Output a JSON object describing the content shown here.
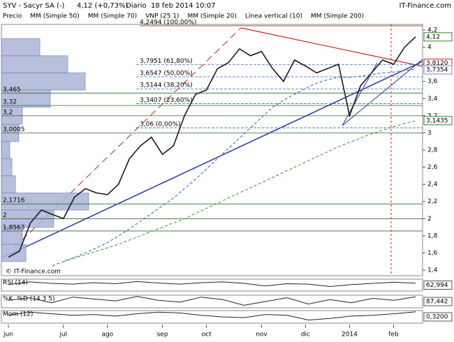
{
  "chart_data": {
    "type": "line",
    "title": "SYV - Sacyr SA (-)",
    "quote": "4,12 (+0,73%)",
    "period": "Diario",
    "timestamp": "18 feb 2014 10:07",
    "brand": "IT-Finance.com",
    "watermark": "© IT-Finance.com",
    "categories": [
      "jun",
      null,
      null,
      null,
      null,
      "jul",
      null,
      null,
      null,
      "ago",
      null,
      null,
      null,
      null,
      "sep",
      null,
      null,
      null,
      "oct",
      null,
      null,
      null,
      null,
      "nov",
      null,
      null,
      null,
      "dic",
      null,
      null,
      null,
      "2014",
      null,
      null,
      null,
      "feb",
      null,
      null
    ],
    "series": [
      {
        "name": "Precio",
        "color": "#1a1a1a",
        "values": [
          1.55,
          1.62,
          1.95,
          2.1,
          2.05,
          2.0,
          2.25,
          2.35,
          2.3,
          2.28,
          2.4,
          2.7,
          2.85,
          2.95,
          2.75,
          2.85,
          3.2,
          3.45,
          3.5,
          3.75,
          3.82,
          3.98,
          3.9,
          3.95,
          3.75,
          3.6,
          3.85,
          3.78,
          3.7,
          3.75,
          3.8,
          3.2,
          3.55,
          3.7,
          3.85,
          3.8,
          4.0,
          4.12
        ]
      },
      {
        "name": "MM (Simple 70)",
        "color": "#3355dd",
        "values": [
          null,
          null,
          null,
          null,
          1.45,
          1.5,
          1.55,
          1.6,
          1.66,
          1.72,
          1.8,
          1.88,
          1.97,
          2.06,
          2.15,
          2.24,
          2.35,
          2.46,
          2.58,
          2.7,
          2.82,
          2.94,
          3.06,
          3.18,
          3.3,
          3.38,
          3.45,
          3.52,
          3.58,
          3.62,
          3.65,
          3.65,
          3.66,
          3.68,
          3.7,
          3.71,
          3.73,
          3.74
        ]
      },
      {
        "name": "MM (Simple 200)",
        "color": "#3a8a2a",
        "values": [
          null,
          null,
          null,
          null,
          null,
          1.5,
          1.54,
          1.58,
          1.62,
          1.66,
          1.7,
          1.75,
          1.8,
          1.85,
          1.9,
          1.95,
          2.0,
          2.06,
          2.12,
          2.18,
          2.24,
          2.3,
          2.36,
          2.42,
          2.48,
          2.54,
          2.6,
          2.66,
          2.72,
          2.78,
          2.84,
          2.89,
          2.94,
          2.99,
          3.03,
          3.07,
          3.11,
          3.14
        ]
      }
    ],
    "legend_other": [
      {
        "name": "MM (Simple 50)",
        "color": "#777777"
      },
      {
        "name": "VNP (25 1)",
        "color": "#9999cc"
      },
      {
        "name": "MM (Simple 20)",
        "color": "#cc2222"
      },
      {
        "name": "Línea vertical (10)",
        "color": "#cc2222"
      }
    ],
    "ylim": [
      1.335,
      4.265
    ],
    "yticks": [
      {
        "value": 1.4,
        "label": "1,4"
      },
      {
        "value": 1.6,
        "label": "1,6"
      },
      {
        "value": 1.8,
        "label": "1,8"
      },
      2,
      {
        "value": 2.2,
        "label": "2,2"
      },
      {
        "value": 2.4,
        "label": "2,4"
      },
      {
        "value": 2.6,
        "label": "2,6"
      },
      {
        "value": 2.8,
        "label": "2,8"
      },
      3,
      {
        "value": 3.2,
        "label": "3,2"
      },
      {
        "value": 3.4,
        "label": "3,4"
      },
      {
        "value": 3.6,
        "label": "3,6"
      },
      {
        "value": 3.8,
        "label": "3,8"
      },
      4,
      {
        "value": 4.2,
        "label": "4,2"
      }
    ],
    "markers": [
      {
        "value": 4.12,
        "label": "4,12",
        "color": "#2a8a2a"
      },
      {
        "value": 3.812,
        "label": "3,8120",
        "color": "#cc2222"
      },
      {
        "value": 3.7354,
        "label": "3,7354",
        "color": "#7788cc"
      },
      {
        "value": 3.1435,
        "label": "3,1435",
        "color": "#2a8a2a"
      }
    ],
    "fib_levels": [
      {
        "value": 4.2494,
        "label": "4,2494 (100,00%)"
      },
      {
        "value": 3.7951,
        "label": "3,7951 (61,80%)"
      },
      {
        "value": 3.6547,
        "label": "3,6547 (50,00%)"
      },
      {
        "value": 3.5144,
        "label": "3,5144 (38,20%)"
      },
      {
        "value": 3.3407,
        "label": "3,3407 (23,60%)"
      },
      {
        "value": 3.06,
        "label": "3,06 (0,00%)"
      }
    ],
    "levels": [
      {
        "value": 3.465,
        "label": "3,465"
      },
      {
        "value": 3.32,
        "label": "3,32"
      },
      {
        "value": 3.2,
        "label": "3,2"
      },
      {
        "value": 3.0005,
        "label": "3,0005"
      },
      {
        "value": 2.1716,
        "label": "2,1716"
      },
      {
        "value": 2,
        "label": "2"
      },
      {
        "value": 1.8563,
        "label": "1,8563"
      }
    ],
    "volume_profile": {
      "bins": [
        1.5,
        1.7,
        1.9,
        2.1,
        2.3,
        2.5,
        2.7,
        2.9,
        3.1,
        3.3,
        3.5,
        3.7,
        3.9,
        4.1
      ],
      "values": [
        35,
        30,
        75,
        125,
        20,
        15,
        12,
        25,
        30,
        70,
        120,
        95,
        55
      ]
    },
    "panels": [
      {
        "title": "RSI (14)",
        "ylim": [
          20,
          85
        ],
        "value_label": "62,994",
        "values": [
          55,
          70,
          62,
          58,
          66,
          60,
          72,
          64,
          58,
          66,
          70,
          62,
          48,
          60,
          58,
          45,
          55,
          62,
          68,
          63
        ]
      },
      {
        "title": "%K",
        "subtitle": "%D (14 3 5)",
        "ylim": [
          0,
          100
        ],
        "value_label": "87,442",
        "values": [
          60,
          80,
          40,
          85,
          70,
          55,
          90,
          60,
          45,
          85,
          65,
          20,
          50,
          80,
          30,
          65,
          40,
          75,
          60,
          87
        ]
      },
      {
        "title": "Mom (12)",
        "ylim": [
          -0.4,
          0.4
        ],
        "value_label": "0,3200",
        "values": [
          0.1,
          0.3,
          0.2,
          0.1,
          0.15,
          0.05,
          0.2,
          0.3,
          0.25,
          0.1,
          0.0,
          -0.05,
          0.15,
          0.1,
          -0.2,
          -0.1,
          0.05,
          0.1,
          0.2,
          0.32
        ]
      }
    ]
  }
}
